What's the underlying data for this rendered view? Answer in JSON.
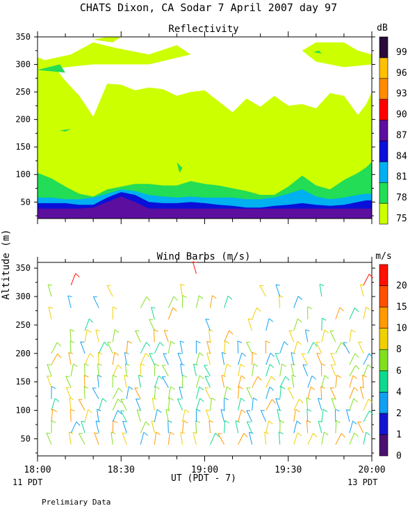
{
  "header": {
    "title": "CHATS Dixon, CA  Sodar   7 April 2007  day  97"
  },
  "footer": {
    "note": "Prelimiary Data",
    "left_local": "11 PDT",
    "right_local": "13 PDT"
  },
  "colors": {
    "reflectivity": [
      "#ccff00",
      "#22dd55",
      "#00b0f0",
      "#0a10d8",
      "#5c0e9e",
      "#ff0000",
      "#ff8c00",
      "#ffc000",
      "#2a0a3a"
    ],
    "wind": [
      "#4a1070",
      "#1414d0",
      "#10a0f0",
      "#10d890",
      "#80e020",
      "#f0d000",
      "#ff9a00",
      "#ff5000",
      "#ff1000"
    ]
  },
  "chart_data": [
    {
      "type": "heatmap",
      "title": "Reflectivity",
      "ylabel": "Altitude (m)",
      "ylim": [
        20,
        350
      ],
      "yticks": [
        50,
        100,
        150,
        200,
        250,
        300,
        350
      ],
      "xlim": [
        "18:00",
        "20:00"
      ],
      "colorbar": {
        "unit": "dB",
        "levels": [
          75,
          78,
          81,
          84,
          87,
          90,
          93,
          96,
          99
        ]
      },
      "contours": [
        {
          "level": 75,
          "region": "base layer",
          "y_top": [
            313,
            303,
            270,
            243,
            205,
            265,
            263,
            253,
            258,
            255,
            243,
            250,
            253,
            233,
            213,
            238,
            223,
            243,
            225,
            228,
            220,
            248,
            243,
            208,
            228,
            250
          ],
          "x": [
            "18:00",
            "18:05",
            "18:10",
            "18:15",
            "18:20",
            "18:25",
            "18:30",
            "18:35",
            "18:40",
            "18:45",
            "18:50",
            "18:55",
            "19:00",
            "19:05",
            "19:10",
            "19:15",
            "19:20",
            "19:25",
            "19:30",
            "19:35",
            "19:40",
            "19:45",
            "19:50",
            "19:55",
            "19:58",
            "20:00"
          ]
        },
        {
          "level": 78,
          "y_top": [
            103,
            93,
            78,
            65,
            60,
            73,
            78,
            83,
            83,
            80,
            80,
            88,
            83,
            80,
            75,
            70,
            63,
            63,
            78,
            98,
            80,
            73,
            90,
            103,
            113,
            123
          ],
          "x": [
            "18:00",
            "18:05",
            "18:10",
            "18:15",
            "18:20",
            "18:25",
            "18:30",
            "18:35",
            "18:40",
            "18:45",
            "18:50",
            "18:55",
            "19:00",
            "19:05",
            "19:10",
            "19:15",
            "19:20",
            "19:25",
            "19:30",
            "19:35",
            "19:40",
            "19:45",
            "19:50",
            "19:55",
            "19:58",
            "20:00"
          ]
        },
        {
          "level": 81,
          "y_top": [
            58,
            58,
            55,
            55,
            58,
            65,
            73,
            70,
            63,
            60,
            58,
            60,
            58,
            58,
            58,
            55,
            55,
            58,
            65,
            73,
            60,
            55,
            58,
            63,
            65,
            65
          ],
          "x": [
            "18:00",
            "18:05",
            "18:10",
            "18:15",
            "18:20",
            "18:25",
            "18:30",
            "18:35",
            "18:40",
            "18:45",
            "18:50",
            "18:55",
            "19:00",
            "19:05",
            "19:10",
            "19:15",
            "19:20",
            "19:25",
            "19:30",
            "19:35",
            "19:40",
            "19:45",
            "19:50",
            "19:55",
            "19:58",
            "20:00"
          ]
        },
        {
          "level": 84,
          "y_top": [
            48,
            48,
            48,
            45,
            45,
            58,
            68,
            63,
            50,
            48,
            48,
            50,
            48,
            45,
            43,
            40,
            40,
            43,
            45,
            48,
            45,
            43,
            45,
            50,
            53,
            53
          ],
          "x": [
            "18:00",
            "18:05",
            "18:10",
            "18:15",
            "18:20",
            "18:25",
            "18:30",
            "18:35",
            "18:40",
            "18:45",
            "18:50",
            "18:55",
            "19:00",
            "19:05",
            "19:10",
            "19:15",
            "19:20",
            "19:25",
            "19:30",
            "19:35",
            "19:40",
            "19:45",
            "19:50",
            "19:55",
            "19:58",
            "20:00"
          ]
        },
        {
          "level": 87,
          "y_top": [
            38,
            38,
            38,
            38,
            40,
            50,
            60,
            50,
            38,
            38,
            38,
            38,
            38,
            38,
            38,
            38,
            38,
            38,
            38,
            38,
            38,
            38,
            38,
            38,
            38,
            38
          ],
          "x": [
            "18:00",
            "18:05",
            "18:10",
            "18:15",
            "18:20",
            "18:25",
            "18:30",
            "18:35",
            "18:40",
            "18:45",
            "18:50",
            "18:55",
            "19:00",
            "19:05",
            "19:10",
            "19:15",
            "19:20",
            "19:25",
            "19:30",
            "19:35",
            "19:40",
            "19:45",
            "19:50",
            "19:55",
            "19:58",
            "20:00"
          ]
        }
      ]
    },
    {
      "type": "scatter",
      "title": "Wind Barbs (m/s)",
      "ylabel": "Altitude (m)",
      "xlabel": "UT  (PDT - 7)",
      "ylim": [
        20,
        360
      ],
      "yticks": [
        50,
        100,
        150,
        200,
        250,
        300,
        350
      ],
      "x_ticks": [
        "18:00",
        "18:30",
        "19:00",
        "19:30",
        "20:00"
      ],
      "colorbar": {
        "unit": "m/s",
        "levels": [
          0,
          1,
          2,
          4,
          6,
          8,
          10,
          15,
          20
        ]
      },
      "barb_columns": [
        "18:05",
        "18:12",
        "18:17",
        "18:22",
        "18:27",
        "18:32",
        "18:37",
        "18:42",
        "18:47",
        "18:52",
        "18:57",
        "19:02",
        "19:07",
        "19:12",
        "19:17",
        "19:22",
        "19:27",
        "19:32",
        "19:37",
        "19:42",
        "19:47",
        "19:52",
        "19:57"
      ],
      "barb_heights": [
        40,
        60,
        80,
        100,
        120,
        140,
        160,
        180,
        200,
        220,
        240,
        260,
        280,
        300,
        320,
        340
      ]
    }
  ]
}
